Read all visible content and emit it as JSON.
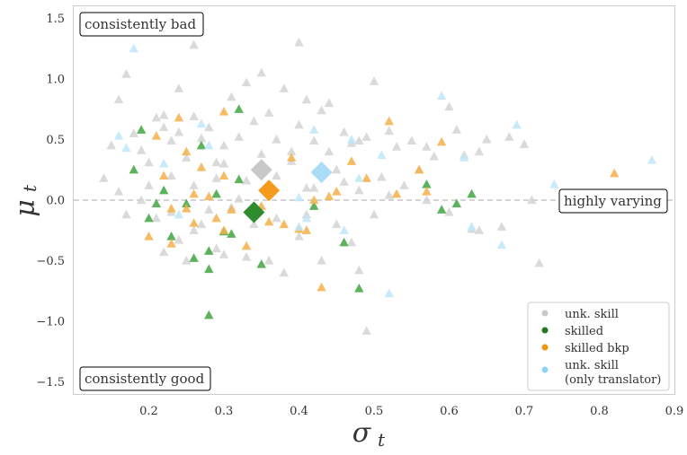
{
  "chart_data": {
    "type": "scatter",
    "xlabel_sym": "σ",
    "xlabel_sub": "t",
    "ylabel_sym": "μ",
    "ylabel_sub": "t",
    "xlim": [
      0.1,
      0.9
    ],
    "ylim": [
      -1.6,
      1.6
    ],
    "xticks": [
      0.2,
      0.3,
      0.4,
      0.5,
      0.6,
      0.7,
      0.8,
      0.9
    ],
    "xtick_labels": [
      "0.2",
      "0.3",
      "0.4",
      "0.5",
      "0.6",
      "0.7",
      "0.8",
      "0.9"
    ],
    "yticks": [
      -1.5,
      -1.0,
      -0.5,
      0.0,
      0.5,
      1.0,
      1.5
    ],
    "ytick_labels": [
      "−1.5",
      "−1.0",
      "−0.5",
      "0.0",
      "0.5",
      "1.0",
      "1.5"
    ],
    "grid": false,
    "reference_line_y": 0.0,
    "annotations": {
      "top_left": "consistently bad",
      "bottom_left": "consistently good",
      "right": "highly varying"
    },
    "legend": {
      "placement": "bottom-right",
      "entries": [
        {
          "label": "unk. skill",
          "color": "#c8c8c8"
        },
        {
          "label": "skilled",
          "color": "#1f7a1f"
        },
        {
          "label": "skilled bkp",
          "color": "#f0960a"
        },
        {
          "label": "unk. skill",
          "label2": "(only translator)",
          "color": "#8fd3f5"
        }
      ]
    },
    "series": [
      {
        "key": "unk",
        "color": "#d4d4d4",
        "points": [
          [
            0.15,
            0.45
          ],
          [
            0.16,
            0.83
          ],
          [
            0.17,
            1.04
          ],
          [
            0.18,
            0.55
          ],
          [
            0.19,
            0.41
          ],
          [
            0.2,
            0.31
          ],
          [
            0.21,
            0.68
          ],
          [
            0.22,
            0.7
          ],
          [
            0.22,
            0.6
          ],
          [
            0.23,
            0.49
          ],
          [
            0.24,
            0.56
          ],
          [
            0.25,
            0.35
          ],
          [
            0.24,
            0.92
          ],
          [
            0.26,
            0.69
          ],
          [
            0.27,
            0.51
          ],
          [
            0.28,
            0.6
          ],
          [
            0.29,
            0.31
          ],
          [
            0.3,
            0.45
          ],
          [
            0.31,
            0.85
          ],
          [
            0.32,
            0.52
          ],
          [
            0.33,
            0.97
          ],
          [
            0.35,
            1.05
          ],
          [
            0.36,
            0.72
          ],
          [
            0.37,
            0.5
          ],
          [
            0.38,
            0.92
          ],
          [
            0.39,
            0.4
          ],
          [
            0.4,
            0.62
          ],
          [
            0.41,
            0.83
          ],
          [
            0.42,
            0.49
          ],
          [
            0.43,
            0.74
          ],
          [
            0.44,
            0.8
          ],
          [
            0.45,
            0.25
          ],
          [
            0.46,
            0.56
          ],
          [
            0.47,
            0.47
          ],
          [
            0.48,
            0.49
          ],
          [
            0.49,
            0.52
          ],
          [
            0.5,
            0.98
          ],
          [
            0.51,
            0.19
          ],
          [
            0.52,
            0.57
          ],
          [
            0.53,
            0.44
          ],
          [
            0.55,
            0.49
          ],
          [
            0.56,
            0.25
          ],
          [
            0.57,
            0.44
          ],
          [
            0.58,
            0.36
          ],
          [
            0.6,
            0.77
          ],
          [
            0.61,
            0.58
          ],
          [
            0.62,
            0.37
          ],
          [
            0.64,
            0.4
          ],
          [
            0.65,
            0.5
          ],
          [
            0.68,
            0.52
          ],
          [
            0.7,
            0.46
          ],
          [
            0.71,
            0.0
          ],
          [
            0.72,
            -0.52
          ],
          [
            0.14,
            0.18
          ],
          [
            0.16,
            0.07
          ],
          [
            0.17,
            -0.12
          ],
          [
            0.19,
            0.0
          ],
          [
            0.21,
            -0.15
          ],
          [
            0.22,
            -0.43
          ],
          [
            0.23,
            -0.1
          ],
          [
            0.24,
            -0.33
          ],
          [
            0.25,
            -0.5
          ],
          [
            0.26,
            -0.25
          ],
          [
            0.27,
            -0.2
          ],
          [
            0.28,
            -0.08
          ],
          [
            0.29,
            -0.4
          ],
          [
            0.3,
            -0.45
          ],
          [
            0.31,
            -0.06
          ],
          [
            0.33,
            -0.47
          ],
          [
            0.34,
            -0.2
          ],
          [
            0.36,
            -0.5
          ],
          [
            0.37,
            -0.15
          ],
          [
            0.38,
            -0.6
          ],
          [
            0.4,
            -0.3
          ],
          [
            0.41,
            -0.12
          ],
          [
            0.42,
            0.1
          ],
          [
            0.43,
            -0.5
          ],
          [
            0.45,
            -0.2
          ],
          [
            0.47,
            -0.35
          ],
          [
            0.48,
            -0.58
          ],
          [
            0.5,
            -0.12
          ],
          [
            0.49,
            -1.08
          ],
          [
            0.2,
            0.12
          ],
          [
            0.23,
            0.2
          ],
          [
            0.26,
            0.12
          ],
          [
            0.3,
            0.3
          ],
          [
            0.33,
            0.16
          ],
          [
            0.35,
            0.38
          ],
          [
            0.37,
            0.2
          ],
          [
            0.39,
            0.32
          ],
          [
            0.41,
            0.1
          ],
          [
            0.44,
            0.4
          ],
          [
            0.46,
            0.15
          ],
          [
            0.48,
            0.08
          ],
          [
            0.52,
            0.04
          ],
          [
            0.54,
            0.12
          ],
          [
            0.57,
            0.0
          ],
          [
            0.6,
            -0.1
          ],
          [
            0.63,
            -0.24
          ],
          [
            0.64,
            -0.25
          ],
          [
            0.67,
            -0.22
          ],
          [
            0.26,
            1.28
          ],
          [
            0.4,
            1.3
          ],
          [
            0.34,
            0.65
          ],
          [
            0.29,
            0.18
          ],
          [
            0.32,
            0.01
          ]
        ]
      },
      {
        "key": "skilled",
        "color": "#3fa63f",
        "points": [
          [
            0.18,
            0.25
          ],
          [
            0.19,
            0.58
          ],
          [
            0.2,
            -0.15
          ],
          [
            0.21,
            -0.03
          ],
          [
            0.22,
            0.08
          ],
          [
            0.23,
            -0.3
          ],
          [
            0.25,
            -0.03
          ],
          [
            0.26,
            -0.48
          ],
          [
            0.27,
            0.45
          ],
          [
            0.28,
            -0.42
          ],
          [
            0.28,
            -0.57
          ],
          [
            0.29,
            0.05
          ],
          [
            0.3,
            -0.26
          ],
          [
            0.31,
            -0.28
          ],
          [
            0.32,
            0.75
          ],
          [
            0.32,
            0.17
          ],
          [
            0.35,
            -0.53
          ],
          [
            0.42,
            -0.05
          ],
          [
            0.46,
            -0.35
          ],
          [
            0.48,
            -0.73
          ],
          [
            0.59,
            -0.08
          ],
          [
            0.61,
            -0.03
          ],
          [
            0.63,
            0.05
          ],
          [
            0.57,
            0.13
          ],
          [
            0.28,
            -0.95
          ]
        ]
      },
      {
        "key": "bkp",
        "color": "#f5b04a",
        "points": [
          [
            0.2,
            -0.3
          ],
          [
            0.21,
            0.53
          ],
          [
            0.22,
            0.2
          ],
          [
            0.23,
            -0.07
          ],
          [
            0.24,
            0.68
          ],
          [
            0.25,
            0.4
          ],
          [
            0.25,
            -0.07
          ],
          [
            0.26,
            0.05
          ],
          [
            0.27,
            0.27
          ],
          [
            0.28,
            0.03
          ],
          [
            0.29,
            -0.15
          ],
          [
            0.3,
            -0.25
          ],
          [
            0.3,
            0.2
          ],
          [
            0.31,
            -0.08
          ],
          [
            0.33,
            -0.38
          ],
          [
            0.35,
            -0.05
          ],
          [
            0.36,
            -0.18
          ],
          [
            0.38,
            -0.2
          ],
          [
            0.39,
            0.35
          ],
          [
            0.4,
            -0.24
          ],
          [
            0.41,
            -0.25
          ],
          [
            0.42,
            0.0
          ],
          [
            0.44,
            0.03
          ],
          [
            0.45,
            0.07
          ],
          [
            0.47,
            0.32
          ],
          [
            0.49,
            0.18
          ],
          [
            0.52,
            0.65
          ],
          [
            0.53,
            0.05
          ],
          [
            0.56,
            0.25
          ],
          [
            0.57,
            0.07
          ],
          [
            0.59,
            0.48
          ],
          [
            0.82,
            0.22
          ],
          [
            0.23,
            -0.36
          ],
          [
            0.43,
            -0.72
          ],
          [
            0.26,
            -0.19
          ],
          [
            0.3,
            0.73
          ]
        ]
      },
      {
        "key": "translator",
        "color": "#bfe6fa",
        "points": [
          [
            0.16,
            0.53
          ],
          [
            0.17,
            0.43
          ],
          [
            0.18,
            1.25
          ],
          [
            0.22,
            0.3
          ],
          [
            0.24,
            -0.12
          ],
          [
            0.27,
            0.63
          ],
          [
            0.28,
            0.45
          ],
          [
            0.4,
            0.02
          ],
          [
            0.41,
            -0.15
          ],
          [
            0.42,
            0.58
          ],
          [
            0.46,
            -0.25
          ],
          [
            0.47,
            0.5
          ],
          [
            0.48,
            0.18
          ],
          [
            0.51,
            0.37
          ],
          [
            0.52,
            -0.77
          ],
          [
            0.59,
            0.86
          ],
          [
            0.62,
            0.35
          ],
          [
            0.63,
            -0.22
          ],
          [
            0.67,
            -0.37
          ],
          [
            0.69,
            0.62
          ],
          [
            0.74,
            0.13
          ],
          [
            0.87,
            0.33
          ],
          [
            0.4,
            -0.22
          ]
        ]
      }
    ],
    "means": [
      {
        "key": "unk",
        "color": "#c8c8c8",
        "x": 0.35,
        "y": 0.25
      },
      {
        "key": "skilled",
        "color": "#2e8b2e",
        "x": 0.34,
        "y": -0.1
      },
      {
        "key": "bkp",
        "color": "#f59a1c",
        "x": 0.36,
        "y": 0.08
      },
      {
        "key": "translator",
        "color": "#a8dcf7",
        "x": 0.43,
        "y": 0.23
      }
    ]
  }
}
